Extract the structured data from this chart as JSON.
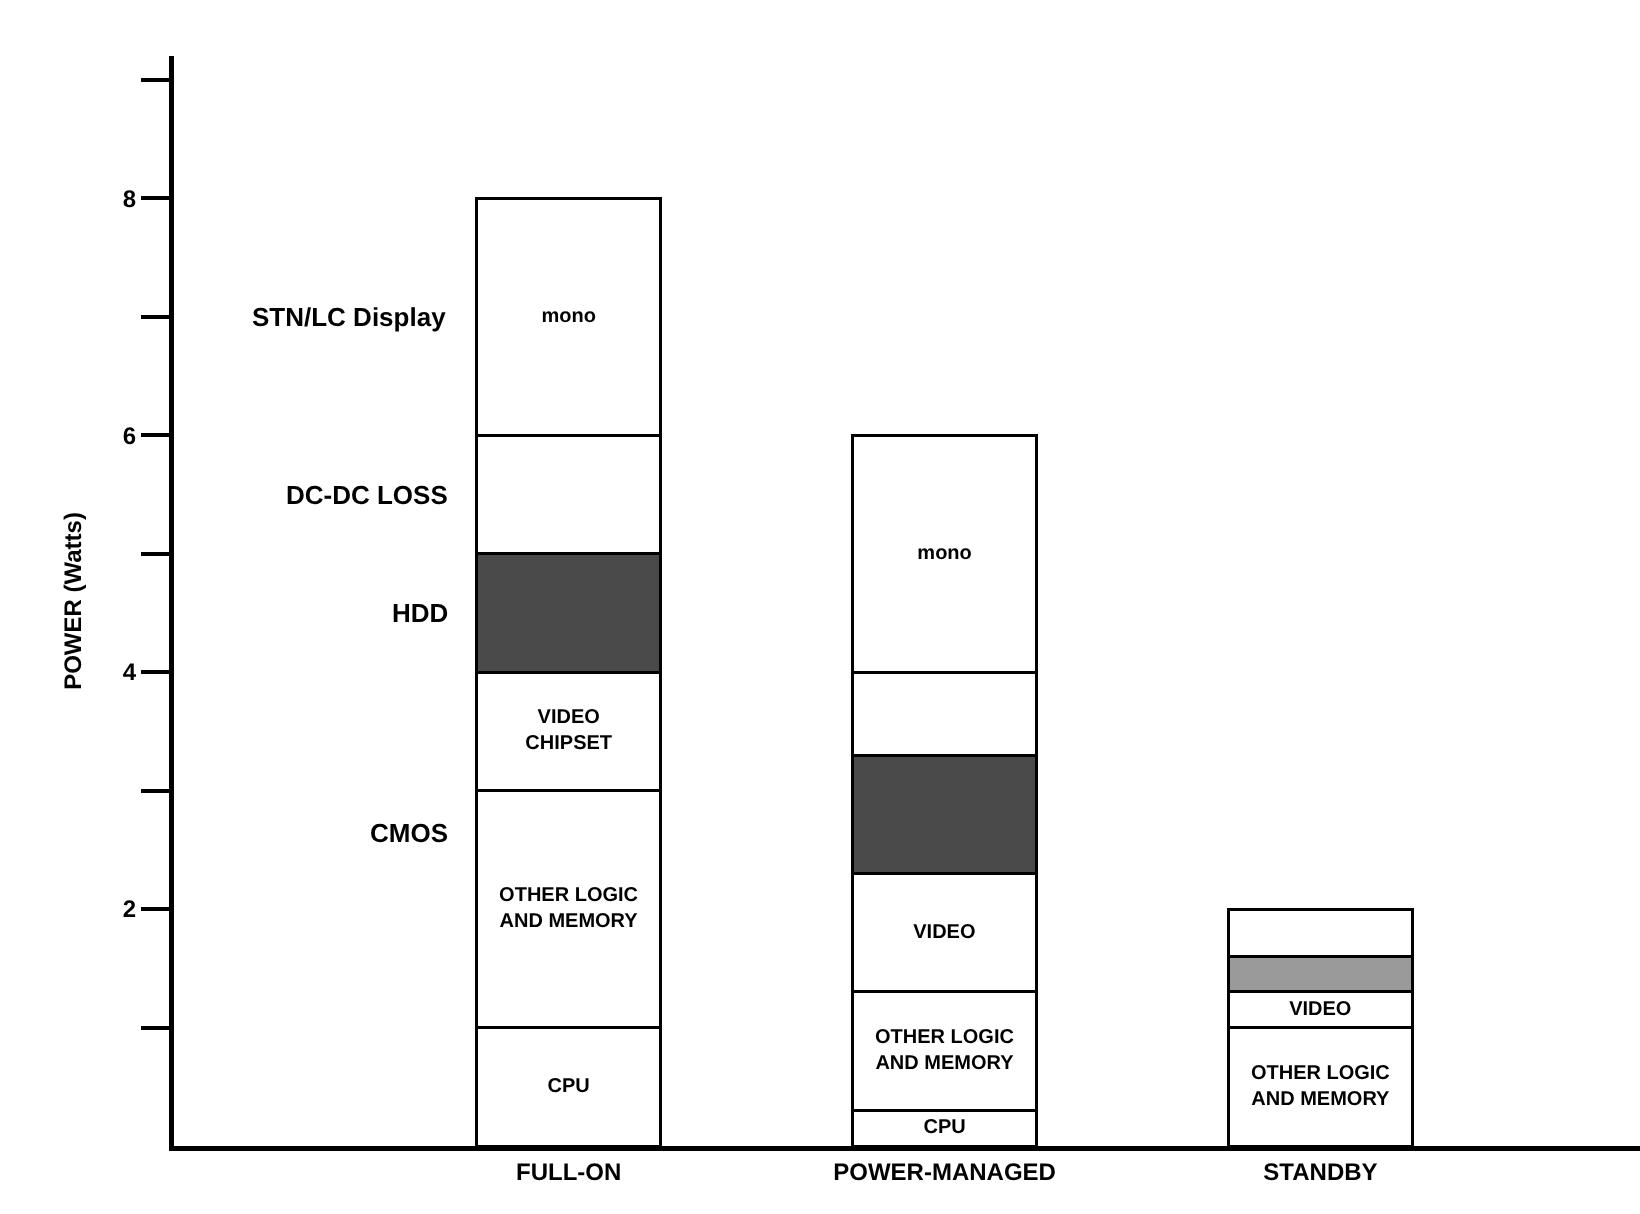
{
  "chart_data": {
    "type": "bar",
    "stacked": true,
    "ylabel": "POWER (Watts)",
    "categories": [
      "FULL-ON",
      "POWER-MANAGED",
      "STANDBY"
    ],
    "series": [
      {
        "color": "#ffffff",
        "values": [
          1,
          0.3,
          null
        ],
        "value_labels": [
          "CPU",
          "CPU",
          null
        ]
      },
      {
        "color": "#ffffff",
        "values": [
          2,
          1.0,
          1.0
        ],
        "value_labels": [
          "OTHER LOGIC\nAND MEMORY",
          "OTHER LOGIC\nAND MEMORY",
          "OTHER LOGIC\nAND MEMORY"
        ]
      },
      {
        "color": "#ffffff",
        "values": [
          1,
          1.0,
          0.3
        ],
        "value_labels": [
          "VIDEO\nCHIPSET",
          "VIDEO",
          "VIDEO"
        ]
      },
      {
        "name": "HDD",
        "colors": [
          "#4a4a4a",
          "#4a4a4a",
          "#9a9a9a"
        ],
        "values": [
          1,
          1.0,
          0.3
        ]
      },
      {
        "name": "DC-DC LOSS",
        "color": "#ffffff",
        "values": [
          1,
          0.7,
          0.4
        ]
      },
      {
        "name": "STN/LC Display",
        "color": "#ffffff",
        "values": [
          2,
          2,
          null
        ],
        "value_labels": [
          "mono",
          "mono",
          null
        ]
      }
    ],
    "annotations": [
      "CMOS"
    ],
    "ylim": [
      0,
      9.2
    ],
    "yticks": [
      {
        "value": 1,
        "label": null
      },
      2,
      {
        "value": 3,
        "label": null
      },
      4,
      {
        "value": 5,
        "label": null
      },
      6,
      {
        "value": 7,
        "label": null
      },
      8,
      {
        "value": 9,
        "label": null
      }
    ],
    "grid": false
  }
}
